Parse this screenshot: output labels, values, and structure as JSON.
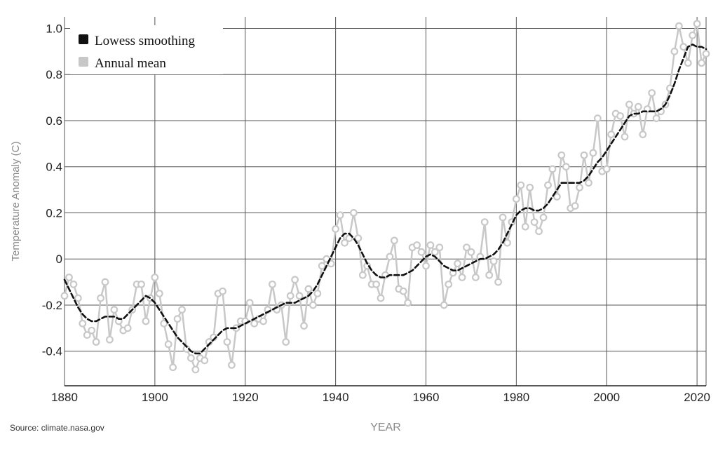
{
  "chart_data": {
    "type": "line",
    "xlabel": "YEAR",
    "ylabel": "Temperature Anomaly (C)",
    "source": "Source: climate.nasa.gov",
    "xlim": [
      1880,
      2022
    ],
    "ylim": [
      -0.55,
      1.05
    ],
    "x_ticks": [
      1880,
      1900,
      1920,
      1940,
      1960,
      1980,
      2000,
      2020
    ],
    "x_tick_labels": [
      "1880",
      "1900",
      "1920",
      "1940",
      "1960",
      "1980",
      "2000",
      "2020"
    ],
    "y_ticks": [
      -0.4,
      -0.2,
      0,
      0.2,
      0.4,
      0.6,
      0.8,
      1.0
    ],
    "y_tick_labels": [
      "-0.4",
      "-0.2",
      "0",
      "0.2",
      "0.4",
      "0.6",
      "0.8",
      "1.0"
    ],
    "grid": true,
    "legend_position": "top-left",
    "colors": {
      "lowess": "#111111",
      "annual": "#c8c8c8",
      "grid": "#555555"
    },
    "x": [
      1880,
      1881,
      1882,
      1883,
      1884,
      1885,
      1886,
      1887,
      1888,
      1889,
      1890,
      1891,
      1892,
      1893,
      1894,
      1895,
      1896,
      1897,
      1898,
      1899,
      1900,
      1901,
      1902,
      1903,
      1904,
      1905,
      1906,
      1907,
      1908,
      1909,
      1910,
      1911,
      1912,
      1913,
      1914,
      1915,
      1916,
      1917,
      1918,
      1919,
      1920,
      1921,
      1922,
      1923,
      1924,
      1925,
      1926,
      1927,
      1928,
      1929,
      1930,
      1931,
      1932,
      1933,
      1934,
      1935,
      1936,
      1937,
      1938,
      1939,
      1940,
      1941,
      1942,
      1943,
      1944,
      1945,
      1946,
      1947,
      1948,
      1949,
      1950,
      1951,
      1952,
      1953,
      1954,
      1955,
      1956,
      1957,
      1958,
      1959,
      1960,
      1961,
      1962,
      1963,
      1964,
      1965,
      1966,
      1967,
      1968,
      1969,
      1970,
      1971,
      1972,
      1973,
      1974,
      1975,
      1976,
      1977,
      1978,
      1979,
      1980,
      1981,
      1982,
      1983,
      1984,
      1985,
      1986,
      1987,
      1988,
      1989,
      1990,
      1991,
      1992,
      1993,
      1994,
      1995,
      1996,
      1997,
      1998,
      1999,
      2000,
      2001,
      2002,
      2003,
      2004,
      2005,
      2006,
      2007,
      2008,
      2009,
      2010,
      2011,
      2012,
      2013,
      2014,
      2015,
      2016,
      2017,
      2018,
      2019,
      2020,
      2021,
      2022
    ],
    "series": [
      {
        "name": "Annual mean",
        "values": [
          -0.16,
          -0.08,
          -0.11,
          -0.17,
          -0.28,
          -0.33,
          -0.31,
          -0.36,
          -0.17,
          -0.1,
          -0.35,
          -0.22,
          -0.27,
          -0.31,
          -0.3,
          -0.22,
          -0.11,
          -0.11,
          -0.27,
          -0.17,
          -0.08,
          -0.15,
          -0.28,
          -0.37,
          -0.47,
          -0.26,
          -0.22,
          -0.39,
          -0.43,
          -0.48,
          -0.43,
          -0.44,
          -0.36,
          -0.34,
          -0.15,
          -0.14,
          -0.36,
          -0.46,
          -0.3,
          -0.27,
          -0.27,
          -0.19,
          -0.28,
          -0.26,
          -0.27,
          -0.22,
          -0.11,
          -0.22,
          -0.2,
          -0.36,
          -0.16,
          -0.09,
          -0.16,
          -0.29,
          -0.13,
          -0.2,
          -0.15,
          -0.03,
          0.0,
          -0.02,
          0.13,
          0.19,
          0.07,
          0.09,
          0.2,
          0.09,
          -0.07,
          -0.03,
          -0.11,
          -0.11,
          -0.17,
          -0.07,
          0.01,
          0.08,
          -0.13,
          -0.14,
          -0.19,
          0.05,
          0.06,
          0.03,
          -0.03,
          0.06,
          0.03,
          0.05,
          -0.2,
          -0.11,
          -0.06,
          -0.02,
          -0.08,
          0.05,
          0.03,
          -0.08,
          0.01,
          0.16,
          -0.07,
          -0.01,
          -0.1,
          0.18,
          0.07,
          0.16,
          0.26,
          0.32,
          0.14,
          0.31,
          0.16,
          0.12,
          0.18,
          0.32,
          0.39,
          0.27,
          0.45,
          0.4,
          0.22,
          0.23,
          0.31,
          0.45,
          0.33,
          0.46,
          0.61,
          0.38,
          0.39,
          0.54,
          0.63,
          0.62,
          0.53,
          0.67,
          0.63,
          0.66,
          0.54,
          0.65,
          0.72,
          0.61,
          0.64,
          0.67,
          0.74,
          0.9,
          1.01,
          0.92,
          0.85,
          0.97,
          1.02,
          0.85,
          0.89
        ]
      },
      {
        "name": "Lowess smoothing",
        "values": [
          -0.09,
          -0.13,
          -0.17,
          -0.21,
          -0.24,
          -0.26,
          -0.27,
          -0.27,
          -0.26,
          -0.25,
          -0.25,
          -0.25,
          -0.26,
          -0.26,
          -0.24,
          -0.22,
          -0.2,
          -0.18,
          -0.16,
          -0.17,
          -0.19,
          -0.22,
          -0.25,
          -0.28,
          -0.31,
          -0.34,
          -0.36,
          -0.38,
          -0.4,
          -0.41,
          -0.41,
          -0.39,
          -0.37,
          -0.35,
          -0.33,
          -0.31,
          -0.3,
          -0.3,
          -0.3,
          -0.29,
          -0.28,
          -0.27,
          -0.26,
          -0.25,
          -0.24,
          -0.23,
          -0.22,
          -0.21,
          -0.2,
          -0.19,
          -0.19,
          -0.19,
          -0.18,
          -0.17,
          -0.16,
          -0.14,
          -0.11,
          -0.07,
          -0.03,
          0.01,
          0.05,
          0.09,
          0.11,
          0.11,
          0.09,
          0.06,
          0.02,
          -0.02,
          -0.05,
          -0.07,
          -0.08,
          -0.08,
          -0.07,
          -0.07,
          -0.07,
          -0.07,
          -0.06,
          -0.05,
          -0.03,
          -0.01,
          0.01,
          0.02,
          0.01,
          -0.01,
          -0.03,
          -0.04,
          -0.05,
          -0.05,
          -0.04,
          -0.03,
          -0.02,
          -0.01,
          0.0,
          0.0,
          0.01,
          0.02,
          0.04,
          0.07,
          0.11,
          0.15,
          0.19,
          0.21,
          0.22,
          0.22,
          0.21,
          0.21,
          0.22,
          0.24,
          0.27,
          0.3,
          0.33,
          0.33,
          0.33,
          0.33,
          0.33,
          0.34,
          0.36,
          0.39,
          0.42,
          0.44,
          0.47,
          0.5,
          0.53,
          0.56,
          0.59,
          0.62,
          0.63,
          0.63,
          0.64,
          0.64,
          0.64,
          0.64,
          0.65,
          0.67,
          0.71,
          0.76,
          0.82,
          0.87,
          0.92,
          0.93,
          0.92,
          0.92,
          0.91
        ]
      }
    ]
  }
}
